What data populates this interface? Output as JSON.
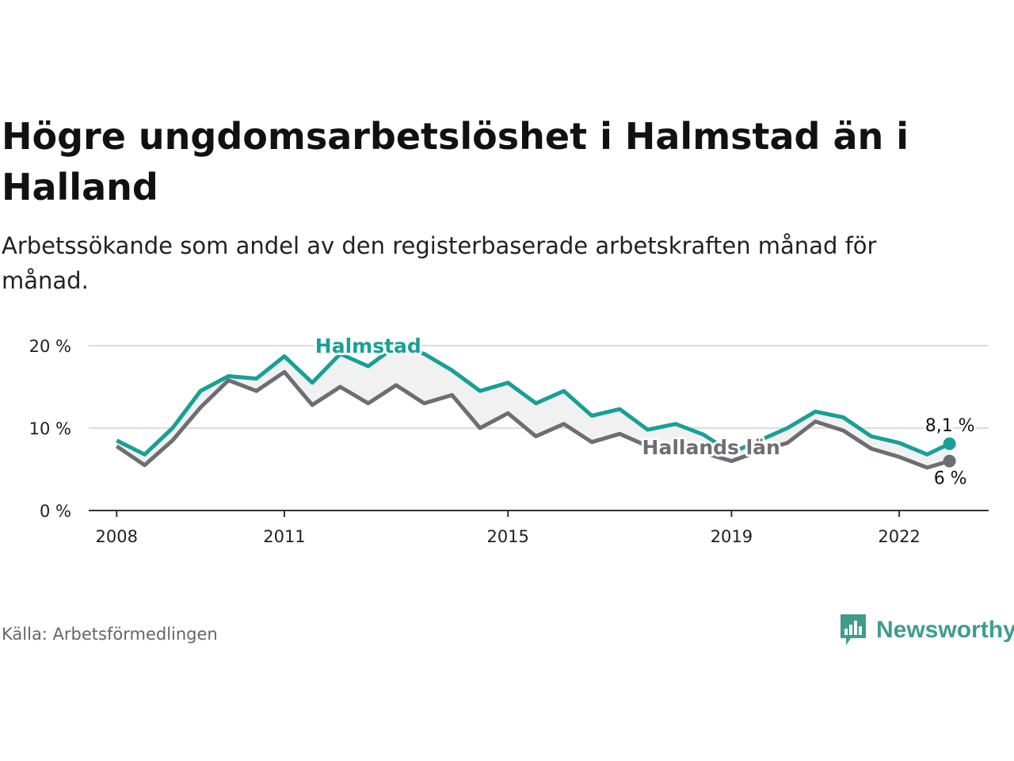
{
  "title": "Högre ungdomsarbetslöshet i Halmstad än i Halland",
  "subtitle": "Arbetssökande som andel av den registerbaserade arbetskraften månad för månad.",
  "source": "Källa: Arbetsförmedlingen",
  "brand": "Newsworthy",
  "colors": {
    "halmstad": "#17a096",
    "halland": "#6d6d73",
    "band": "#f1f1f1",
    "grid": "#dcdcdc",
    "axis": "#333333",
    "brand": "#3f9c8f"
  },
  "chart_data": {
    "type": "line",
    "title": "Högre ungdomsarbetslöshet i Halmstad än i Halland",
    "xlabel": "",
    "ylabel": "",
    "x_range": [
      2007.5,
      2023.6
    ],
    "ylim": [
      0,
      20
    ],
    "yticks": [
      0,
      10,
      20
    ],
    "ytick_labels": [
      "0 %",
      "10 %",
      "20 %"
    ],
    "xticks": [
      2008,
      2011,
      2015,
      2019,
      2022
    ],
    "xtick_labels": [
      "2008",
      "2011",
      "2015",
      "2019",
      "2022"
    ],
    "grid": true,
    "series": [
      {
        "name": "Halmstad",
        "end_label": "8,1 %",
        "x": [
          2008.0,
          2008.5,
          2009.0,
          2009.5,
          2010.0,
          2010.5,
          2011.0,
          2011.5,
          2012.0,
          2012.5,
          2013.0,
          2013.5,
          2014.0,
          2014.5,
          2015.0,
          2015.5,
          2016.0,
          2016.5,
          2017.0,
          2017.5,
          2018.0,
          2018.5,
          2019.0,
          2019.5,
          2020.0,
          2020.5,
          2021.0,
          2021.5,
          2022.0,
          2022.5,
          2022.9
        ],
        "values": [
          8.5,
          6.8,
          10.0,
          14.5,
          16.3,
          16.0,
          18.7,
          15.5,
          19.0,
          17.5,
          20.0,
          19.0,
          17.0,
          14.5,
          15.5,
          13.0,
          14.5,
          11.5,
          12.3,
          9.8,
          10.5,
          9.2,
          7.0,
          8.5,
          10.0,
          12.0,
          11.3,
          9.0,
          8.2,
          6.8,
          8.1
        ]
      },
      {
        "name": "Hallands län",
        "end_label": "6 %",
        "x": [
          2008.0,
          2008.5,
          2009.0,
          2009.5,
          2010.0,
          2010.5,
          2011.0,
          2011.5,
          2012.0,
          2012.5,
          2013.0,
          2013.5,
          2014.0,
          2014.5,
          2015.0,
          2015.5,
          2016.0,
          2016.5,
          2017.0,
          2017.5,
          2018.0,
          2018.5,
          2019.0,
          2019.5,
          2020.0,
          2020.5,
          2021.0,
          2021.5,
          2022.0,
          2022.5,
          2022.9
        ],
        "values": [
          7.8,
          5.5,
          8.5,
          12.5,
          15.8,
          14.5,
          16.8,
          12.8,
          15.0,
          13.0,
          15.2,
          13.0,
          14.0,
          10.0,
          11.8,
          9.0,
          10.5,
          8.3,
          9.3,
          7.8,
          7.2,
          7.0,
          6.0,
          7.2,
          8.2,
          10.8,
          9.7,
          7.5,
          6.5,
          5.2,
          6.0
        ]
      }
    ]
  }
}
